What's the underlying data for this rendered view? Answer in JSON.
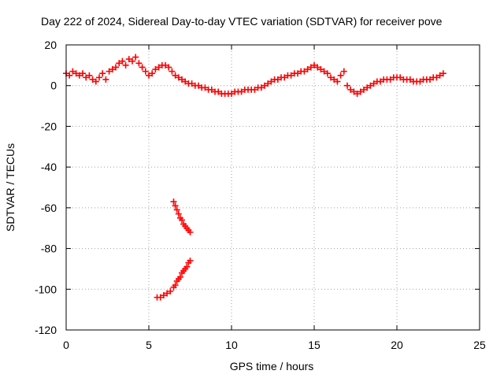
{
  "chart_data": {
    "type": "scatter",
    "title": "Day 222 of 2024, Sidereal Day-to-day VTEC variation (SDTVAR) for receiver pove",
    "xlabel": "GPS time / hours",
    "ylabel": "SDTVAR / TECUs",
    "xlim": [
      0,
      25
    ],
    "ylim": [
      -120,
      20
    ],
    "x_ticks": [
      0,
      5,
      10,
      15,
      20,
      25
    ],
    "y_ticks": [
      -120,
      -100,
      -80,
      -60,
      -40,
      -20,
      0,
      20
    ],
    "x_tick_labels": [
      "0",
      "5",
      "10",
      "15",
      "20",
      "25"
    ],
    "y_tick_labels": [
      "-120",
      "-100",
      "-80",
      "-60",
      "-40",
      "-20",
      "0",
      "20"
    ],
    "grid": true,
    "marker": "+",
    "color": "#ff0000",
    "series": [
      {
        "name": "main trace",
        "points": [
          [
            0.0,
            6
          ],
          [
            0.2,
            5
          ],
          [
            0.4,
            7
          ],
          [
            0.6,
            6
          ],
          [
            0.8,
            5
          ],
          [
            1.0,
            6
          ],
          [
            1.2,
            4
          ],
          [
            1.4,
            5
          ],
          [
            1.6,
            3
          ],
          [
            1.8,
            2
          ],
          [
            2.0,
            4
          ],
          [
            2.2,
            6
          ],
          [
            2.4,
            3
          ],
          [
            2.6,
            7
          ],
          [
            2.8,
            8
          ],
          [
            3.0,
            9
          ],
          [
            3.2,
            11
          ],
          [
            3.4,
            12
          ],
          [
            3.6,
            10
          ],
          [
            3.8,
            13
          ],
          [
            4.0,
            12
          ],
          [
            4.2,
            14
          ],
          [
            4.4,
            11
          ],
          [
            4.6,
            9
          ],
          [
            4.8,
            7
          ],
          [
            5.0,
            5
          ],
          [
            5.2,
            6
          ],
          [
            5.4,
            8
          ],
          [
            5.6,
            9
          ],
          [
            5.8,
            10
          ],
          [
            6.0,
            10
          ],
          [
            6.2,
            9
          ],
          [
            6.4,
            7
          ],
          [
            6.6,
            5
          ],
          [
            6.8,
            4
          ],
          [
            7.0,
            3
          ],
          [
            7.2,
            2
          ],
          [
            7.4,
            1
          ],
          [
            7.6,
            1
          ],
          [
            7.8,
            0
          ],
          [
            8.0,
            0
          ],
          [
            8.2,
            -1
          ],
          [
            8.4,
            -1
          ],
          [
            8.6,
            -2
          ],
          [
            8.8,
            -2
          ],
          [
            9.0,
            -3
          ],
          [
            9.2,
            -3
          ],
          [
            9.4,
            -4
          ],
          [
            9.6,
            -4
          ],
          [
            9.8,
            -4
          ],
          [
            10.0,
            -4
          ],
          [
            10.2,
            -3
          ],
          [
            10.4,
            -3
          ],
          [
            10.6,
            -3
          ],
          [
            10.8,
            -2
          ],
          [
            11.0,
            -2
          ],
          [
            11.2,
            -2
          ],
          [
            11.4,
            -2
          ],
          [
            11.6,
            -1
          ],
          [
            11.8,
            -1
          ],
          [
            12.0,
            0
          ],
          [
            12.2,
            1
          ],
          [
            12.4,
            2
          ],
          [
            12.6,
            3
          ],
          [
            12.8,
            3
          ],
          [
            13.0,
            4
          ],
          [
            13.2,
            4
          ],
          [
            13.4,
            5
          ],
          [
            13.6,
            5
          ],
          [
            13.8,
            6
          ],
          [
            14.0,
            6
          ],
          [
            14.2,
            7
          ],
          [
            14.4,
            7
          ],
          [
            14.6,
            8
          ],
          [
            14.8,
            9
          ],
          [
            15.0,
            10
          ],
          [
            15.2,
            9
          ],
          [
            15.4,
            8
          ],
          [
            15.6,
            7
          ],
          [
            15.8,
            6
          ],
          [
            16.0,
            4
          ],
          [
            16.2,
            3
          ],
          [
            16.4,
            2
          ],
          [
            16.6,
            5
          ],
          [
            16.8,
            7
          ],
          [
            17.0,
            0
          ],
          [
            17.2,
            -2
          ],
          [
            17.4,
            -3
          ],
          [
            17.6,
            -4
          ],
          [
            17.8,
            -3
          ],
          [
            18.0,
            -2
          ],
          [
            18.2,
            -1
          ],
          [
            18.4,
            0
          ],
          [
            18.6,
            1
          ],
          [
            18.8,
            2
          ],
          [
            19.0,
            2
          ],
          [
            19.2,
            3
          ],
          [
            19.4,
            3
          ],
          [
            19.6,
            3
          ],
          [
            19.8,
            4
          ],
          [
            20.0,
            4
          ],
          [
            20.2,
            4
          ],
          [
            20.4,
            3
          ],
          [
            20.6,
            3
          ],
          [
            20.8,
            3
          ],
          [
            21.0,
            2
          ],
          [
            21.2,
            2
          ],
          [
            21.4,
            2
          ],
          [
            21.6,
            3
          ],
          [
            21.8,
            3
          ],
          [
            22.0,
            3
          ],
          [
            22.2,
            4
          ],
          [
            22.4,
            4
          ],
          [
            22.6,
            5
          ],
          [
            22.8,
            6
          ]
        ]
      },
      {
        "name": "upper low branch",
        "points": [
          [
            6.5,
            -57
          ],
          [
            6.6,
            -59
          ],
          [
            6.7,
            -61
          ],
          [
            6.8,
            -63
          ],
          [
            6.9,
            -65
          ],
          [
            7.0,
            -66
          ],
          [
            7.1,
            -68
          ],
          [
            7.2,
            -69
          ],
          [
            7.3,
            -70
          ],
          [
            7.4,
            -71
          ],
          [
            7.5,
            -72
          ]
        ]
      },
      {
        "name": "lower low branch",
        "points": [
          [
            5.5,
            -104
          ],
          [
            5.7,
            -104
          ],
          [
            5.9,
            -103
          ],
          [
            6.1,
            -102
          ],
          [
            6.3,
            -101
          ],
          [
            6.5,
            -99
          ],
          [
            6.6,
            -98
          ],
          [
            6.7,
            -96
          ],
          [
            6.8,
            -95
          ],
          [
            6.9,
            -94
          ],
          [
            7.0,
            -92
          ],
          [
            7.1,
            -91
          ],
          [
            7.2,
            -90
          ],
          [
            7.3,
            -89
          ],
          [
            7.4,
            -87
          ],
          [
            7.5,
            -86
          ]
        ]
      }
    ]
  }
}
